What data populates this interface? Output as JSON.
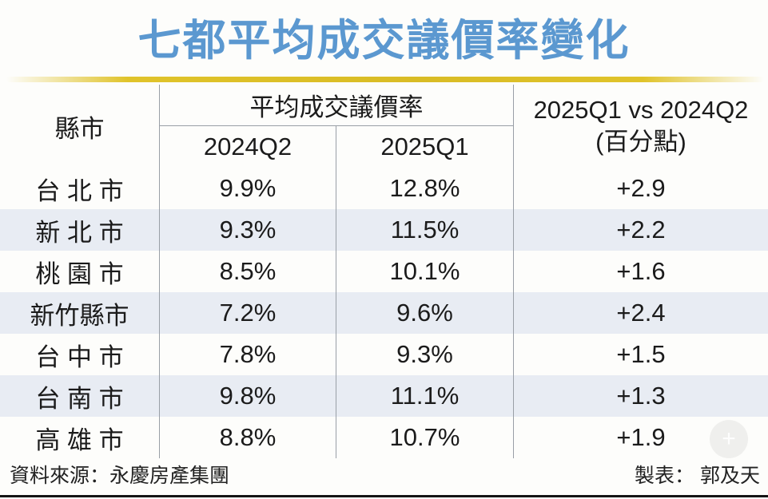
{
  "page": {
    "title": "七都平均成交議價率變化",
    "accent_color": "#5b98d0",
    "gold_bar_color": "#e0c32a",
    "zebra_row_color": "#e8ecf3",
    "grid_line_color": "#999fa6"
  },
  "table": {
    "header": {
      "city": "縣市",
      "rate_group": "平均成交議價率",
      "q2_2024": "2024Q2",
      "q1_2025": "2025Q1",
      "diff_line1": "2025Q1 vs 2024Q2",
      "diff_line2": "(百分點)"
    },
    "rows": [
      {
        "city": "台 北 市",
        "q2_2024": "9.9%",
        "q1_2025": "12.8%",
        "diff": "+2.9"
      },
      {
        "city": "新 北 市",
        "q2_2024": "9.3%",
        "q1_2025": "11.5%",
        "diff": "+2.2"
      },
      {
        "city": "桃 園 市",
        "q2_2024": "8.5%",
        "q1_2025": "10.1%",
        "diff": "+1.6"
      },
      {
        "city": "新竹縣市",
        "q2_2024": "7.2%",
        "q1_2025": "9.6%",
        "diff": "+2.4"
      },
      {
        "city": "台 中 市",
        "q2_2024": "7.8%",
        "q1_2025": "9.3%",
        "diff": "+1.5"
      },
      {
        "city": "台 南 市",
        "q2_2024": "9.8%",
        "q1_2025": "11.1%",
        "diff": "+1.3"
      },
      {
        "city": "高 雄 市",
        "q2_2024": "8.8%",
        "q1_2025": "10.7%",
        "diff": "+1.9"
      }
    ]
  },
  "footer": {
    "source": "資料來源：永慶房產集團",
    "credit": "製表： 郭及天"
  },
  "icons": {
    "watermark_plus": "+"
  },
  "chart_data": {
    "type": "table",
    "title": "七都平均成交議價率變化",
    "columns": [
      "縣市",
      "平均成交議價率 2024Q2",
      "平均成交議價率 2025Q1",
      "2025Q1 vs 2024Q2 (百分點)"
    ],
    "rows": [
      {
        "city": "台北市",
        "q2_2024_pct": 9.9,
        "q1_2025_pct": 12.8,
        "diff_pp": 2.9
      },
      {
        "city": "新北市",
        "q2_2024_pct": 9.3,
        "q1_2025_pct": 11.5,
        "diff_pp": 2.2
      },
      {
        "city": "桃園市",
        "q2_2024_pct": 8.5,
        "q1_2025_pct": 10.1,
        "diff_pp": 1.6
      },
      {
        "city": "新竹縣市",
        "q2_2024_pct": 7.2,
        "q1_2025_pct": 9.6,
        "diff_pp": 2.4
      },
      {
        "city": "台中市",
        "q2_2024_pct": 7.8,
        "q1_2025_pct": 9.3,
        "diff_pp": 1.5
      },
      {
        "city": "台南市",
        "q2_2024_pct": 9.8,
        "q1_2025_pct": 11.1,
        "diff_pp": 1.3
      },
      {
        "city": "高雄市",
        "q2_2024_pct": 8.8,
        "q1_2025_pct": 10.7,
        "diff_pp": 1.9
      }
    ],
    "source": "永慶房產集團",
    "credit": "郭及天"
  }
}
